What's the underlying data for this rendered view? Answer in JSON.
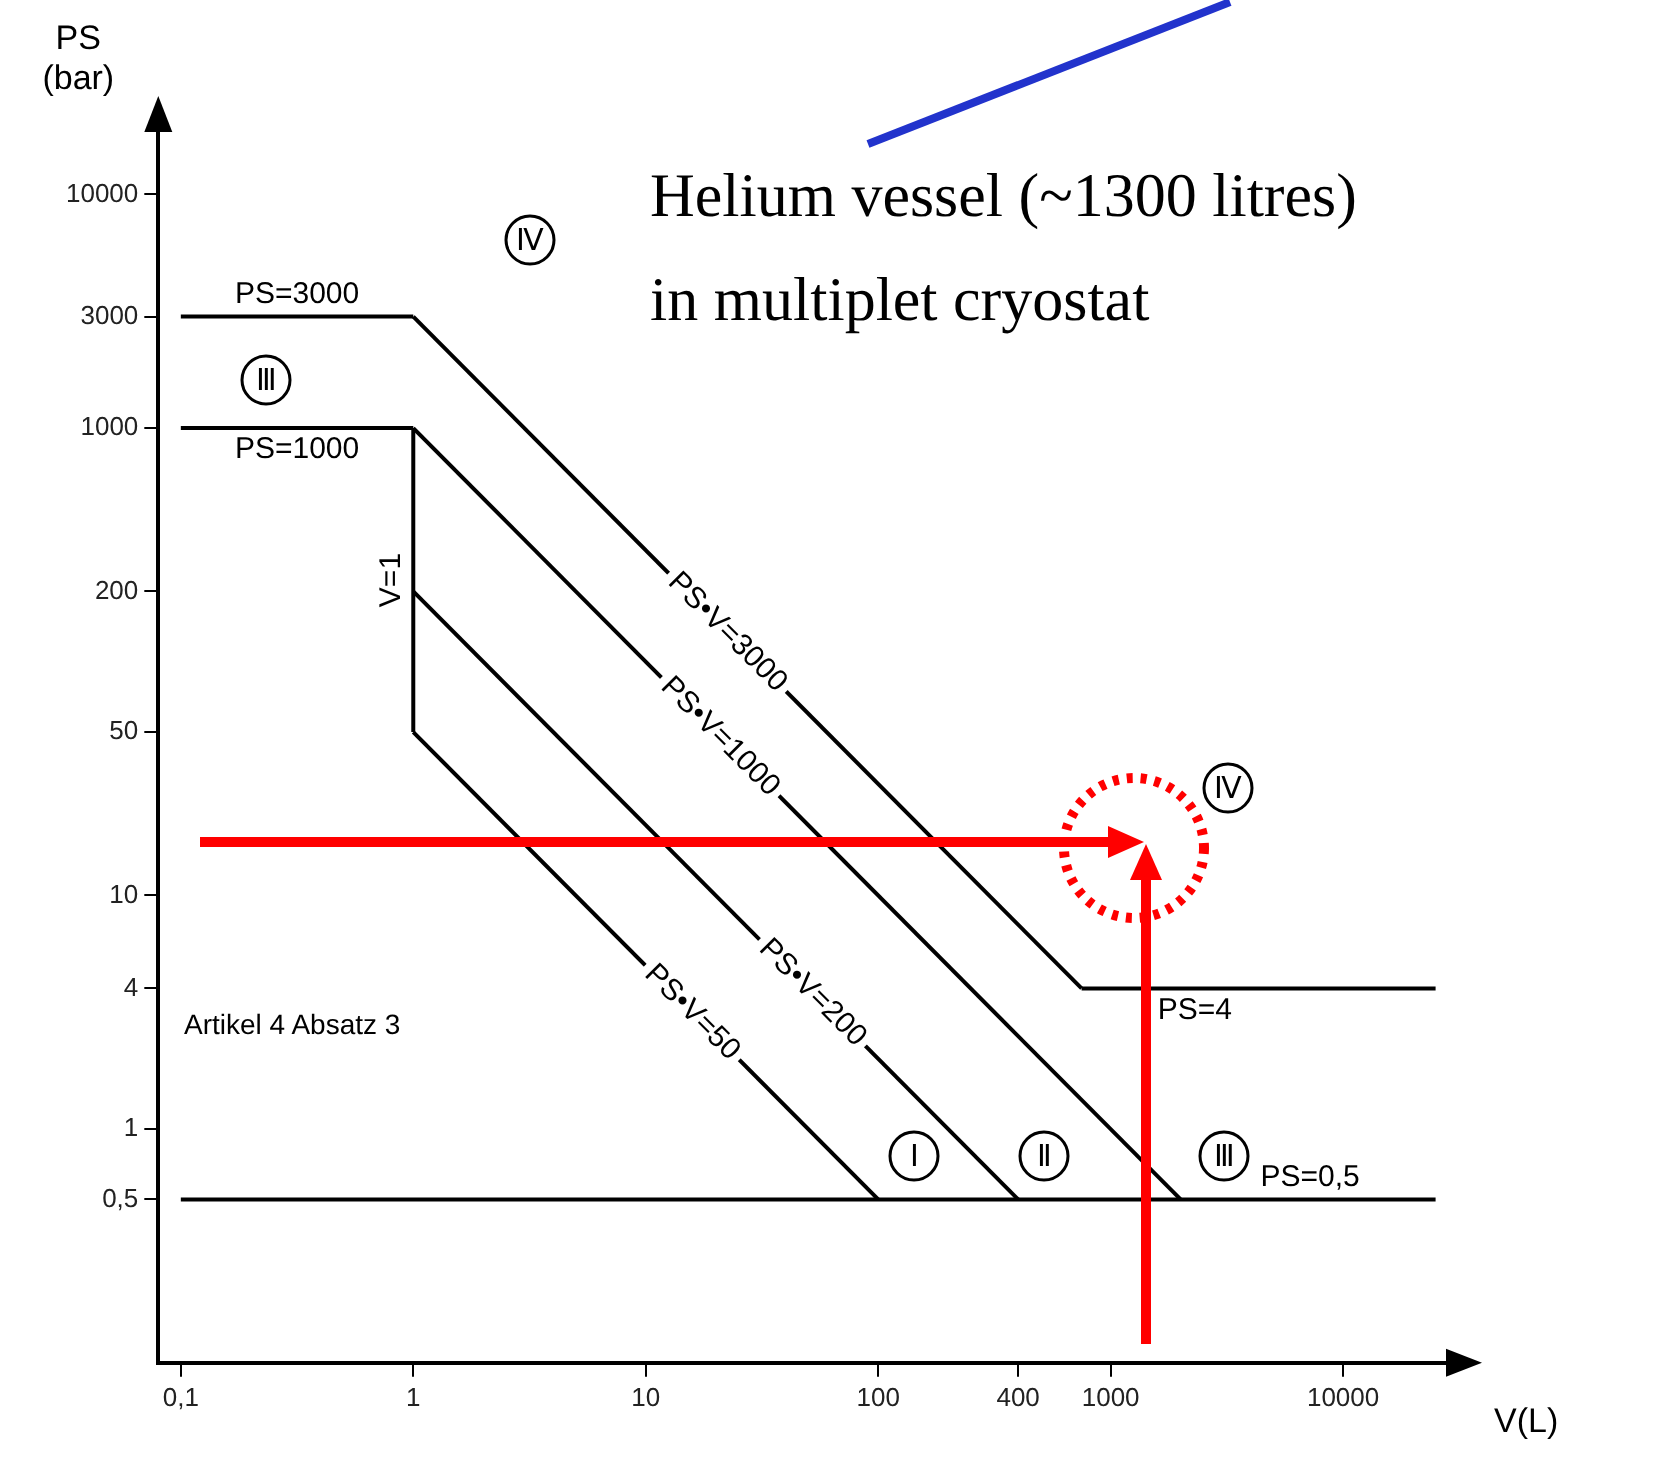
{
  "chart_data": {
    "type": "line",
    "xlabel": "V(L)",
    "ylabel": "PS\n(bar)",
    "log": "xy",
    "grid": false,
    "xlim": [
      0.08,
      30000
    ],
    "ylim": [
      0.1,
      20000
    ],
    "xticks": [
      {
        "value": 0.1,
        "label": "0,1"
      },
      1,
      10,
      100,
      400,
      1000,
      10000
    ],
    "yticks": [
      {
        "value": 0.5,
        "label": "0,5"
      },
      1,
      4,
      10,
      50,
      200,
      1000,
      3000,
      10000
    ],
    "series": [
      {
        "name": "PS=3000",
        "color": "#000000",
        "x": [
          0.1,
          1
        ],
        "values": [
          3000,
          3000
        ]
      },
      {
        "name": "PS•V=3000",
        "color": "#000000",
        "x": [
          1,
          750
        ],
        "values": [
          3000,
          4
        ]
      },
      {
        "name": "PS=4",
        "color": "#000000",
        "x": [
          25000,
          750
        ],
        "values": [
          4,
          4
        ]
      },
      {
        "name": "PS=1000",
        "color": "#000000",
        "x": [
          1,
          0.1
        ],
        "values": [
          1000,
          1000
        ]
      },
      {
        "name": "PS•V=1000",
        "color": "#000000",
        "x": [
          1,
          2000
        ],
        "values": [
          1000,
          0.5
        ]
      },
      {
        "name": "V=1",
        "color": "#000000",
        "x": [
          1,
          1
        ],
        "values": [
          50,
          1000
        ]
      },
      {
        "name": "PS•V=200",
        "color": "#000000",
        "x": [
          1,
          400
        ],
        "values": [
          200,
          0.5
        ]
      },
      {
        "name": "PS•V=50",
        "color": "#000000",
        "x": [
          1,
          100
        ],
        "values": [
          50,
          0.5
        ]
      },
      {
        "name": "PS=0,5",
        "color": "#000000",
        "x": [
          0.1,
          25000
        ],
        "values": [
          0.5,
          0.5
        ]
      }
    ],
    "annotations": [
      "Ⅳ",
      "Ⅲ",
      "Ⅰ",
      "Ⅱ",
      "Ⅲ",
      "Ⅳ",
      "Artikel 4 Absatz 3",
      "Helium vessel (~1300 litres)\nin multiplet cryostat"
    ]
  }
}
